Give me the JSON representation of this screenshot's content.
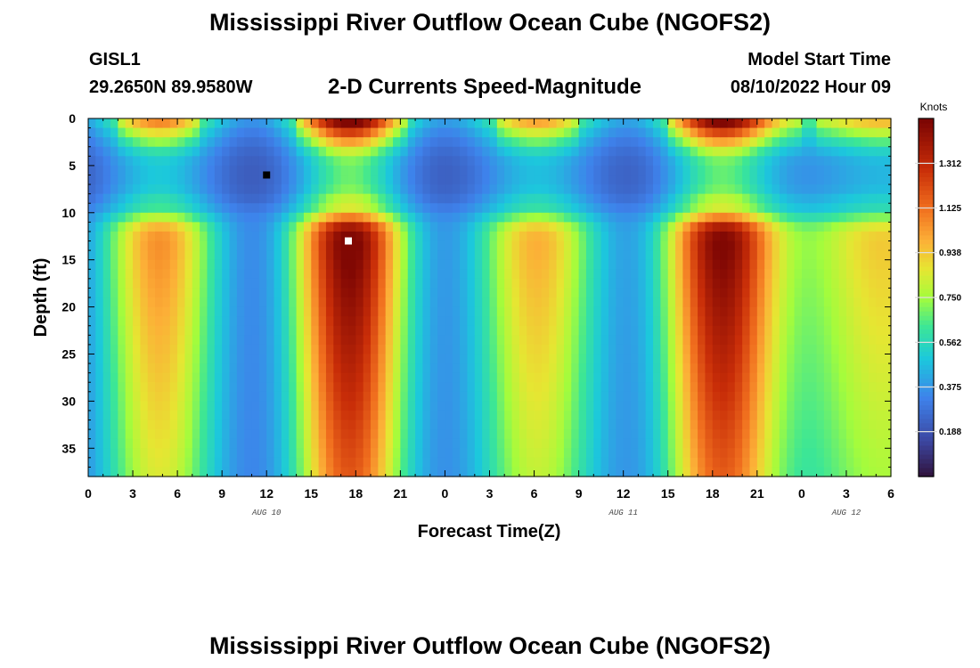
{
  "page": {
    "title_top": "Mississippi River Outflow Ocean Cube (NGOFS2)",
    "title_bottom": "Mississippi River Outflow Ocean Cube (NGOFS2)",
    "station_id": "GISL1",
    "station_coords": "29.2650N  89.9580W",
    "product": "2-D Currents Speed-Magnitude",
    "model_start_label": "Model Start Time",
    "model_start_value": "08/10/2022 Hour 09"
  },
  "chart_data": {
    "type": "heatmap",
    "title": "2-D Currents Speed-Magnitude",
    "xlabel": "Forecast Time(Z)",
    "ylabel": "Depth (ft)",
    "x_range_hours": [
      0,
      54
    ],
    "y_range_ft": [
      0,
      38
    ],
    "y_inverted": true,
    "x_tick_labels": [
      "0",
      "3",
      "6",
      "9",
      "12",
      "15",
      "18",
      "21",
      "0",
      "3",
      "6",
      "9",
      "12",
      "15",
      "18",
      "21",
      "0",
      "3",
      "6"
    ],
    "x_date_labels": [
      {
        "label": "AUG 10",
        "hour": 12
      },
      {
        "label": "AUG 11",
        "hour": 36
      },
      {
        "label": "AUG 12",
        "hour": 51
      }
    ],
    "y_ticks": [
      0,
      5,
      10,
      15,
      20,
      25,
      30,
      35
    ],
    "colorbar": {
      "unit": "Knots",
      "range": [
        0,
        1.5
      ],
      "tick_values": [
        0.188,
        0.375,
        0.562,
        0.75,
        0.938,
        1.125,
        1.312
      ],
      "tick_labels": [
        "0.188",
        "0.375",
        "0.562",
        "0.750",
        "0.938",
        "1.125",
        "1.312"
      ]
    },
    "markers": [
      {
        "name": "min-marker",
        "color": "#000000",
        "hour": 12,
        "depth_ft": 6
      },
      {
        "name": "max-marker",
        "color": "#ffffff",
        "hour": 17.5,
        "depth_ft": 13
      }
    ],
    "grid": false,
    "legend": "colorbar-right"
  }
}
